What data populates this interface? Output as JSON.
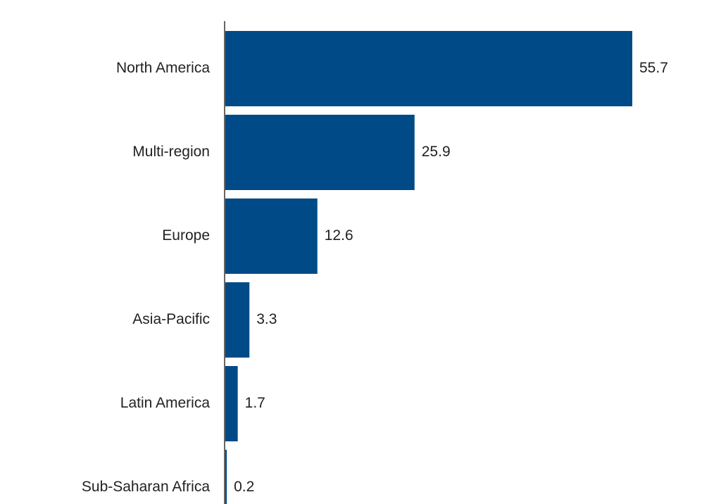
{
  "chart_data": {
    "type": "bar",
    "orientation": "horizontal",
    "categories": [
      "North America",
      "Multi-region",
      "Europe",
      "Asia-Pacific",
      "Latin America",
      "Sub-Saharan Africa"
    ],
    "values": [
      55.7,
      25.9,
      12.6,
      3.3,
      1.7,
      0.2
    ],
    "value_labels": [
      "55.7",
      "25.9",
      "12.6",
      "3.3",
      "1.7",
      "0.2"
    ],
    "xlim": [
      0,
      60
    ],
    "grid": false,
    "legend": "none",
    "bar_color": "#004A87"
  }
}
